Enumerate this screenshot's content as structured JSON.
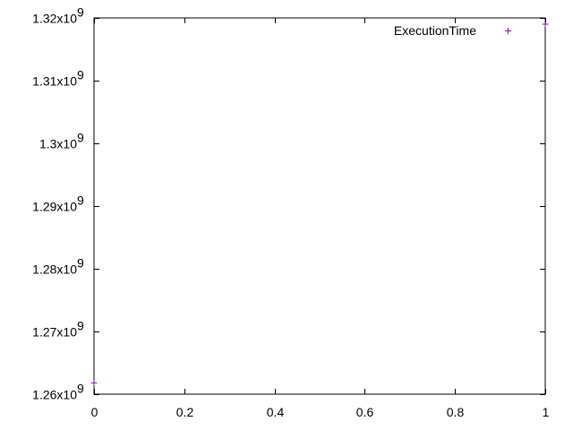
{
  "chart_data": {
    "type": "scatter",
    "title": "",
    "xlabel": "",
    "ylabel": "",
    "xlim": [
      0,
      1
    ],
    "ylim": [
      1260000000,
      1320000000
    ],
    "grid": false,
    "legend_position": "top-right",
    "x_ticks": [
      {
        "value": 0,
        "label": "0"
      },
      {
        "value": 0.2,
        "label": "0.2"
      },
      {
        "value": 0.4,
        "label": "0.4"
      },
      {
        "value": 0.6,
        "label": "0.6"
      },
      {
        "value": 0.8,
        "label": "0.8"
      },
      {
        "value": 1,
        "label": "1"
      }
    ],
    "y_ticks": [
      {
        "value": 1260000000,
        "mantissa": "1.26x10",
        "exponent": "9"
      },
      {
        "value": 1270000000,
        "mantissa": "1.27x10",
        "exponent": "9"
      },
      {
        "value": 1280000000,
        "mantissa": "1.28x10",
        "exponent": "9"
      },
      {
        "value": 1290000000,
        "mantissa": "1.29x10",
        "exponent": "9"
      },
      {
        "value": 1300000000,
        "mantissa": "1.3x10",
        "exponent": "9"
      },
      {
        "value": 1310000000,
        "mantissa": "1.31x10",
        "exponent": "9"
      },
      {
        "value": 1320000000,
        "mantissa": "1.32x10",
        "exponent": "9"
      }
    ],
    "series": [
      {
        "name": "ExecutionTime",
        "color": "#9400d3",
        "marker": "plus",
        "points": [
          {
            "x": 0,
            "y": 1261800000
          },
          {
            "x": 1,
            "y": 1319000000
          }
        ]
      }
    ]
  }
}
